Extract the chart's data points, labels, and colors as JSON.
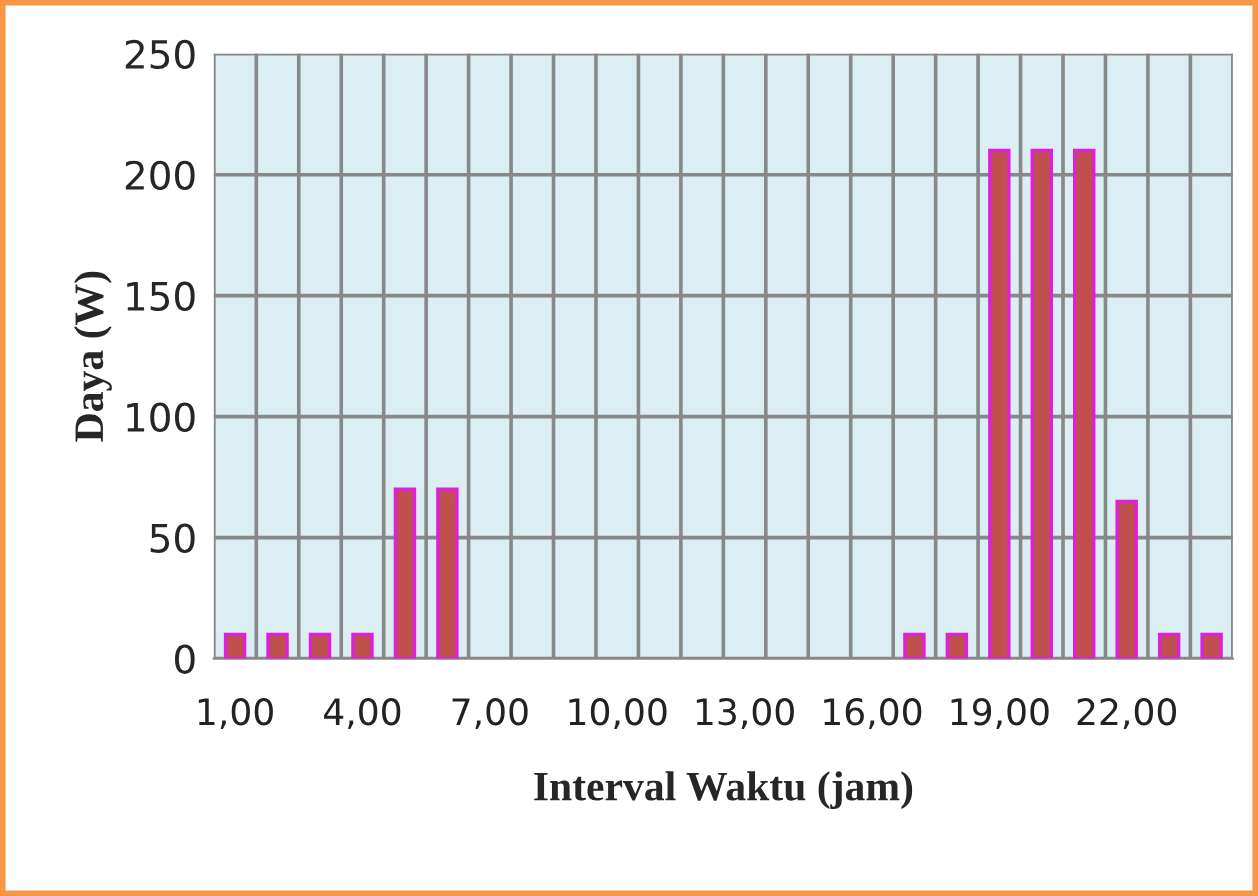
{
  "chart_data": {
    "type": "bar",
    "xlabel": "Interval Waktu (jam)",
    "ylabel": "Daya (W)",
    "categories": [
      "1,00",
      null,
      null,
      "4,00",
      null,
      null,
      "7,00",
      null,
      null,
      "10,00",
      null,
      null,
      "13,00",
      null,
      null,
      "16,00",
      null,
      null,
      "19,00",
      null,
      null,
      "22,00",
      null,
      null
    ],
    "series": [
      {
        "color": "#c0504d",
        "values": [
          10,
          10,
          10,
          10,
          70,
          70,
          0,
          0,
          0,
          0,
          0,
          0,
          0,
          0,
          0,
          0,
          10,
          10,
          210,
          210,
          210,
          65,
          10,
          10
        ]
      }
    ],
    "ylim": [
      0,
      250
    ],
    "yticks": [
      0,
      50,
      100,
      150,
      200,
      250
    ],
    "grid": true,
    "legend": false
  }
}
